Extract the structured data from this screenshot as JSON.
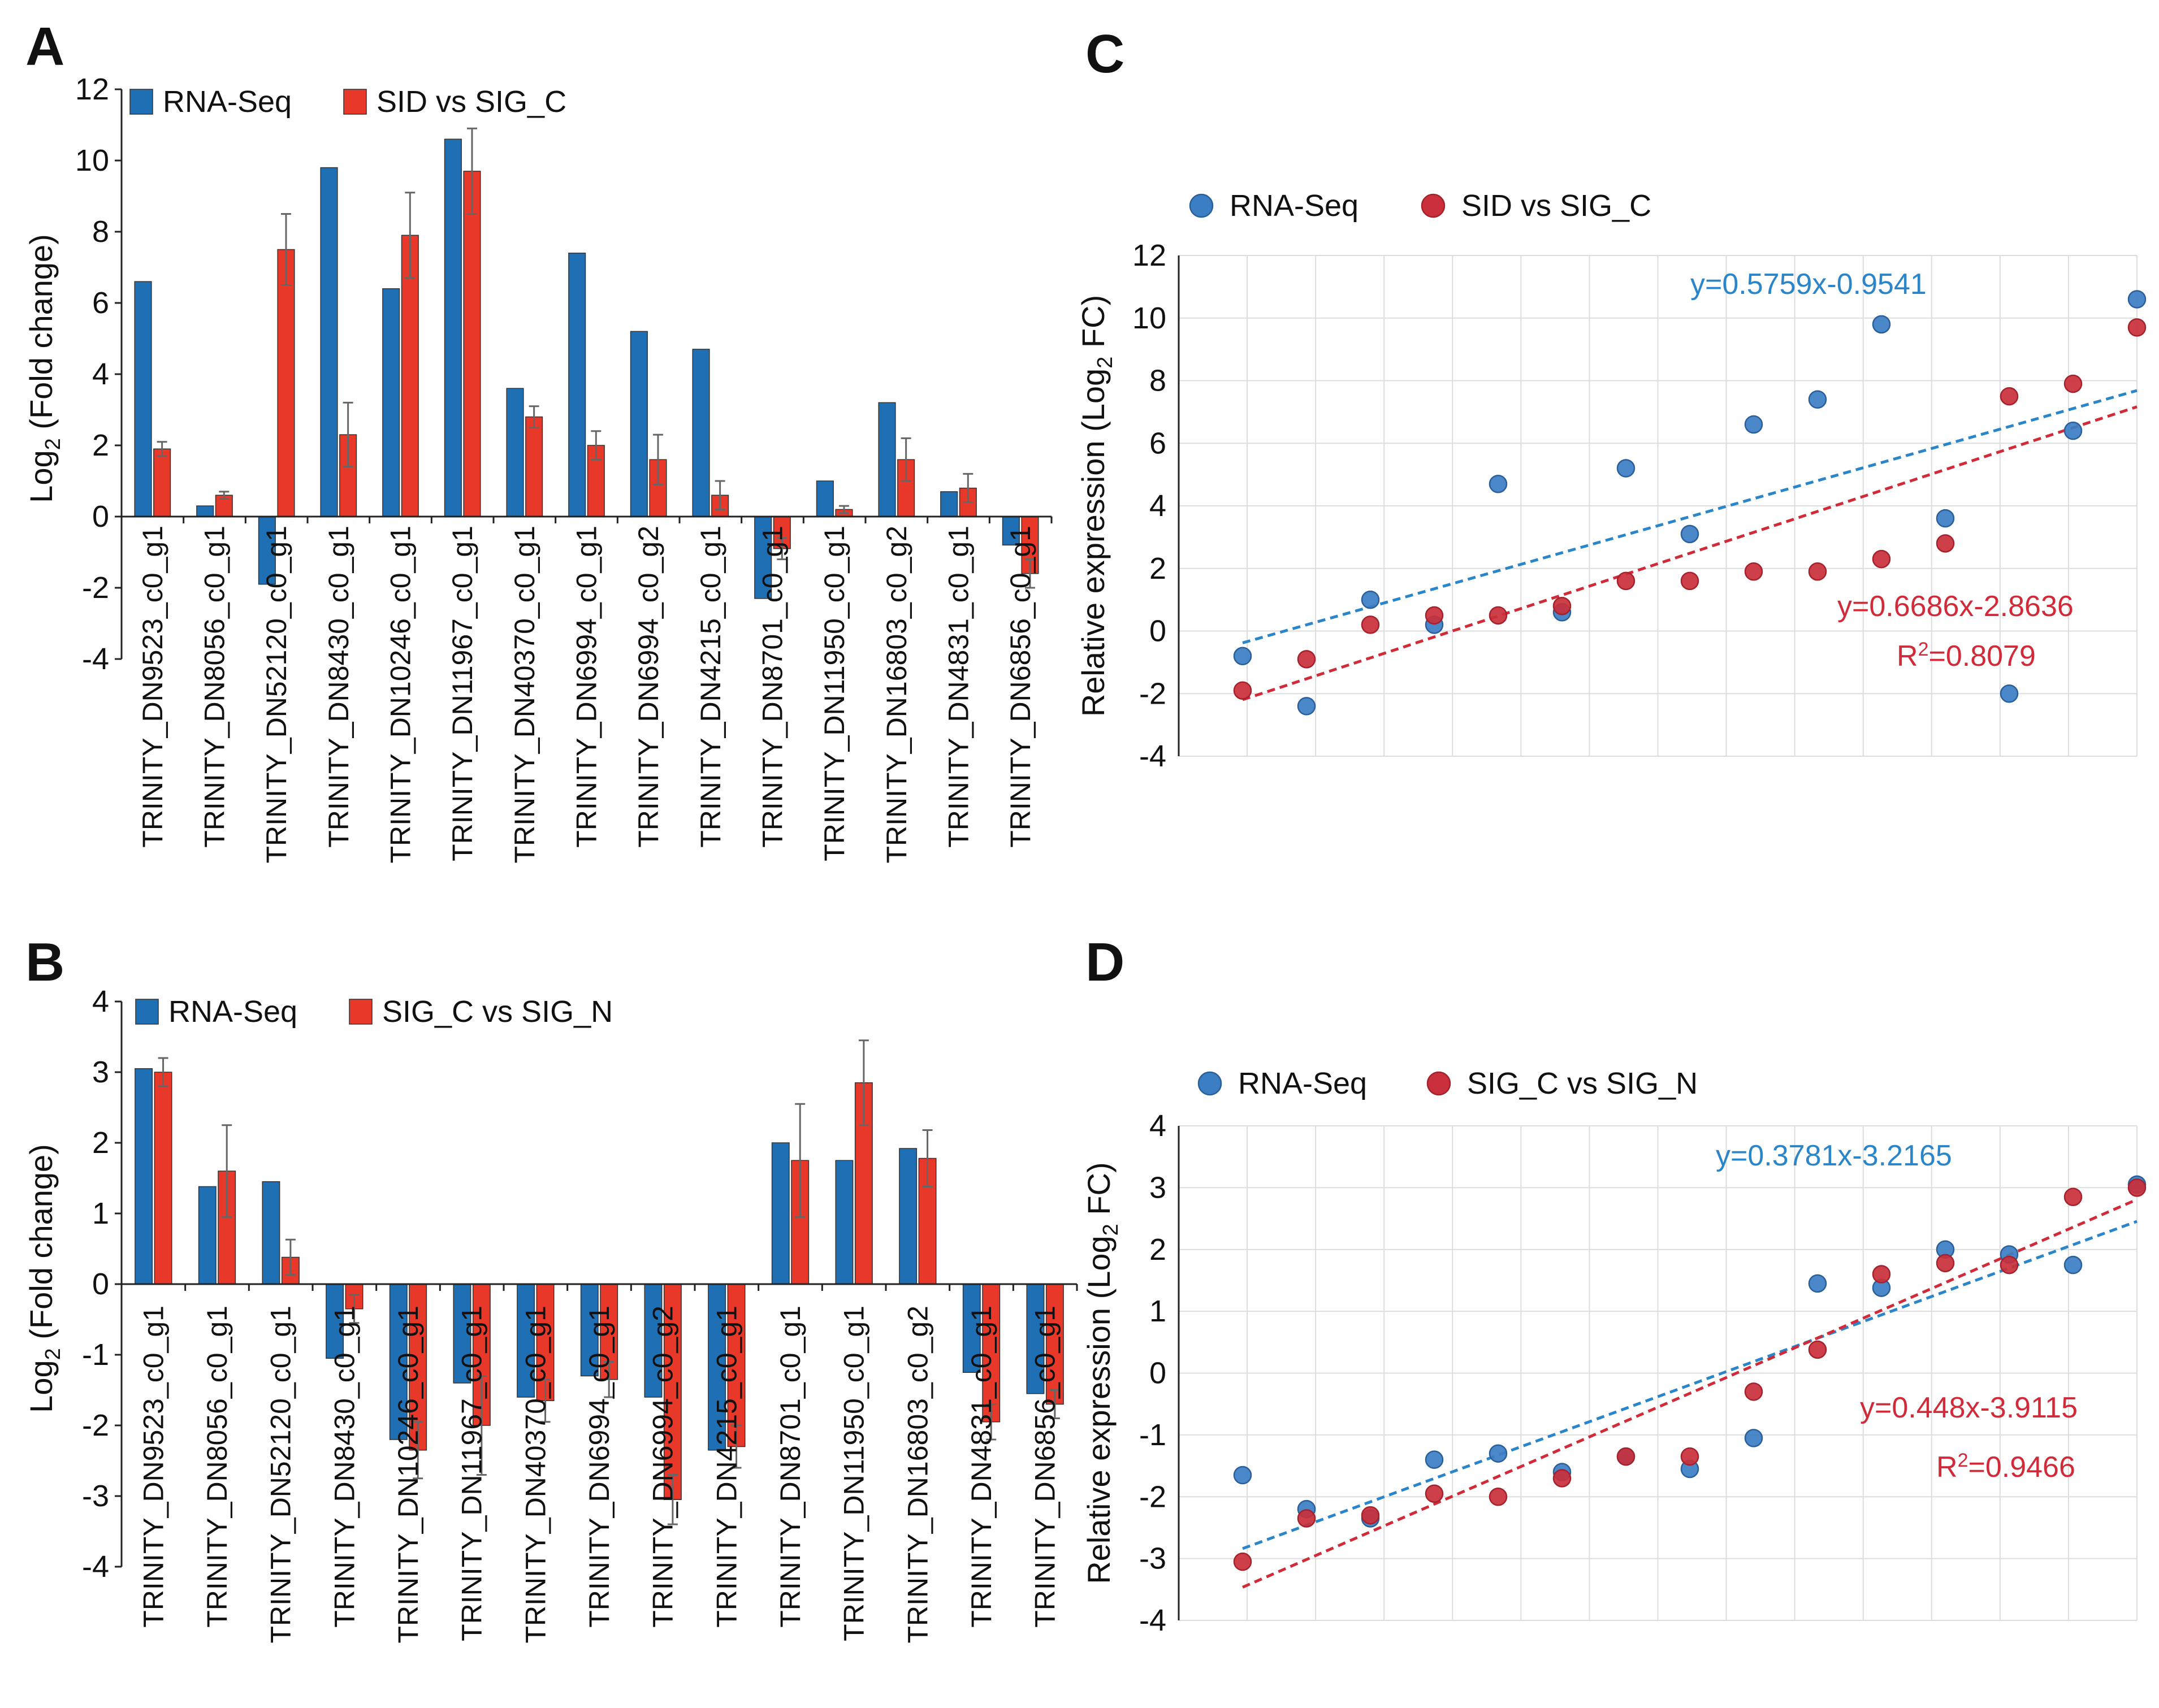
{
  "figure": {
    "panels": [
      "A",
      "B",
      "C",
      "D"
    ]
  },
  "colors": {
    "blue": "#1f6fb5",
    "red": "#e8382a",
    "scatter_blue": "#3c7ec4",
    "scatter_red": "#c9303b",
    "trend_blue": "#2a85c9",
    "trend_red": "#d12b3a",
    "grid": "#dddddd",
    "errbar": "#666666"
  },
  "chart_data": [
    {
      "id": "A",
      "type": "bar",
      "title": "",
      "ylabel_prefix": "Log",
      "ylabel_sub": "2",
      "ylabel_suffix": " (Fold change)",
      "ylim": [
        -4,
        12
      ],
      "yticks": [
        -4,
        -2,
        0,
        2,
        4,
        6,
        8,
        10,
        12
      ],
      "legend_placement": "top-left",
      "categories": [
        "TRINITY_DN9523_c0_g1",
        "TRINITY_DN8056_c0_g1",
        "TRINITY_DN52120_c0_g1",
        "TRINITY_DN8430_c0_g1",
        "TRINITY_DN10246_c0_g1",
        "TRINITY_DN11967_c0_g1",
        "TRINITY_DN40370_c0_g1",
        "TRINITY_DN6994_c0_g1",
        "TRINITY_DN6994_c0_g2",
        "TRINITY_DN4215_c0_g1",
        "TRINITY_DN8701_c0_g1",
        "TRINITY_DN11950_c0_g1",
        "TRINITY_DN16803_c0_g2",
        "TRINITY_DN4831_c0_g1",
        "TRINITY_DN6856_c0_g1"
      ],
      "series": [
        {
          "name": "RNA-Seq",
          "values": [
            6.6,
            0.3,
            -1.9,
            9.8,
            6.4,
            10.6,
            3.6,
            7.4,
            5.2,
            4.7,
            -2.3,
            1.0,
            3.2,
            0.7,
            -0.8
          ],
          "errors": null
        },
        {
          "name": "SID vs SIG_C",
          "values": [
            1.9,
            0.6,
            7.5,
            2.3,
            7.9,
            9.7,
            2.8,
            2.0,
            1.6,
            0.6,
            -0.9,
            0.2,
            1.6,
            0.8,
            -1.6
          ],
          "errors": [
            0.2,
            0.1,
            1.0,
            0.9,
            1.2,
            1.2,
            0.3,
            0.4,
            0.7,
            0.4,
            0.3,
            0.1,
            0.6,
            0.4,
            0.4
          ]
        }
      ]
    },
    {
      "id": "B",
      "type": "bar",
      "title": "",
      "ylabel_prefix": "Log",
      "ylabel_sub": "2",
      "ylabel_suffix": " (Fold change)",
      "ylim": [
        -4,
        4
      ],
      "yticks": [
        -4,
        -3,
        -2,
        -1,
        0,
        1,
        2,
        3,
        4
      ],
      "legend_placement": "top-left",
      "categories": [
        "TRINITY_DN9523_c0_g1",
        "TRINITY_DN8056_c0_g1",
        "TRINITY_DN52120_c0_g1",
        "TRINITY_DN8430_c0_g1",
        "TRINITY_DN10246_c0_g1",
        "TRINITY_DN11967_c0_g1",
        "TRINITY_DN40370_c0_g1",
        "TRINITY_DN6994_c0_g1",
        "TRINITY_DN6994_c0_g2",
        "TRINITY_DN4215_c0_g1",
        "TRINITY_DN8701_c0_g1",
        "TRINITY_DN11950_c0_g1",
        "TRINITY_DN16803_c0_g2",
        "TRINITY_DN4831_c0_g1",
        "TRINITY_DN6856_c0_g1"
      ],
      "series": [
        {
          "name": "RNA-Seq",
          "values": [
            3.05,
            1.38,
            1.45,
            -1.05,
            -2.2,
            -1.4,
            -1.6,
            -1.3,
            -1.6,
            -2.35,
            2.0,
            1.75,
            1.92,
            -1.25,
            -1.55
          ],
          "errors": null
        },
        {
          "name": "SIG_C vs SIG_N",
          "values": [
            3.0,
            1.6,
            0.38,
            -0.35,
            -2.35,
            -2.0,
            -1.65,
            -1.35,
            -3.05,
            -2.3,
            1.75,
            2.85,
            1.78,
            -1.95,
            -1.7
          ],
          "errors": [
            0.2,
            0.65,
            0.25,
            0.2,
            0.4,
            0.7,
            0.3,
            0.25,
            0.35,
            0.3,
            0.8,
            0.6,
            0.4,
            0.25,
            0.2
          ]
        }
      ]
    },
    {
      "id": "C",
      "type": "scatter",
      "title": "",
      "ylabel_prefix": "Relative expression (Log",
      "ylabel_sub": "2",
      "ylabel_suffix": " FC)",
      "xlim": [
        0,
        15
      ],
      "ylim": [
        -4,
        12
      ],
      "yticks": [
        -4,
        -2,
        0,
        2,
        4,
        6,
        8,
        10,
        12
      ],
      "grid": true,
      "legend_placement": "top-left",
      "series": [
        {
          "name": "RNA-Seq",
          "x": [
            1,
            2,
            3,
            4,
            5,
            6,
            7,
            8,
            9,
            10,
            11,
            12,
            13,
            14,
            15
          ],
          "y": [
            -0.8,
            -2.4,
            1.0,
            0.2,
            4.7,
            0.6,
            5.2,
            3.1,
            6.6,
            7.4,
            9.8,
            3.6,
            -2.0,
            6.4,
            10.6
          ],
          "trend": {
            "slope": 0.5759,
            "intercept": -0.9541
          }
        },
        {
          "name": "SID vs SIG_C",
          "x": [
            1,
            2,
            3,
            4,
            5,
            6,
            7,
            8,
            9,
            10,
            11,
            12,
            13,
            14,
            15
          ],
          "y": [
            -1.9,
            -0.9,
            0.2,
            0.5,
            0.5,
            0.8,
            1.6,
            1.6,
            1.9,
            1.9,
            2.3,
            2.8,
            7.5,
            7.9,
            9.7
          ],
          "trend": {
            "slope": 0.6686,
            "intercept": -2.8636
          }
        }
      ],
      "annotations": {
        "eq_blue": "y=0.5759x-0.9541",
        "eq_red": "y=0.6686x-2.8636",
        "r2_prefix": "R",
        "r2_sup": "2",
        "r2_suffix": "=0.8079"
      }
    },
    {
      "id": "D",
      "type": "scatter",
      "title": "",
      "ylabel_prefix": "Relative expression (Log",
      "ylabel_sub": "2",
      "ylabel_suffix": " FC)",
      "xlim": [
        0,
        15
      ],
      "ylim": [
        -4,
        4
      ],
      "yticks": [
        -4,
        -3,
        -2,
        -1,
        0,
        1,
        2,
        3,
        4
      ],
      "grid": true,
      "legend_placement": "top-left",
      "series": [
        {
          "name": "RNA-Seq",
          "x": [
            1,
            2,
            3,
            4,
            5,
            6,
            7,
            8,
            9,
            10,
            11,
            12,
            13,
            14,
            15
          ],
          "y": [
            -1.65,
            -2.2,
            -2.35,
            -1.4,
            -1.3,
            -1.6,
            -1.35,
            -1.55,
            -1.05,
            1.45,
            1.38,
            2.0,
            1.92,
            1.75,
            3.05
          ]
        },
        {
          "name": "SIG_C vs SIG_N",
          "x": [
            1,
            2,
            3,
            4,
            5,
            6,
            7,
            8,
            9,
            10,
            11,
            12,
            13,
            14,
            15
          ],
          "y": [
            -3.05,
            -2.35,
            -2.3,
            -1.95,
            -2.0,
            -1.7,
            -1.35,
            -1.35,
            -0.3,
            0.38,
            1.6,
            1.78,
            1.75,
            2.85,
            3.0
          ]
        }
      ],
      "trends": [
        {
          "name": "RNA-Seq",
          "slope": 0.3781,
          "intercept": -3.2165
        },
        {
          "name": "SIG_C vs SIG_N",
          "slope": 0.448,
          "intercept": -3.9115
        }
      ],
      "annotations": {
        "eq_blue": "y=0.3781x-3.2165",
        "eq_red": "y=0.448x-3.9115",
        "r2_prefix": "R",
        "r2_sup": "2",
        "r2_suffix": "=0.9466"
      }
    }
  ]
}
